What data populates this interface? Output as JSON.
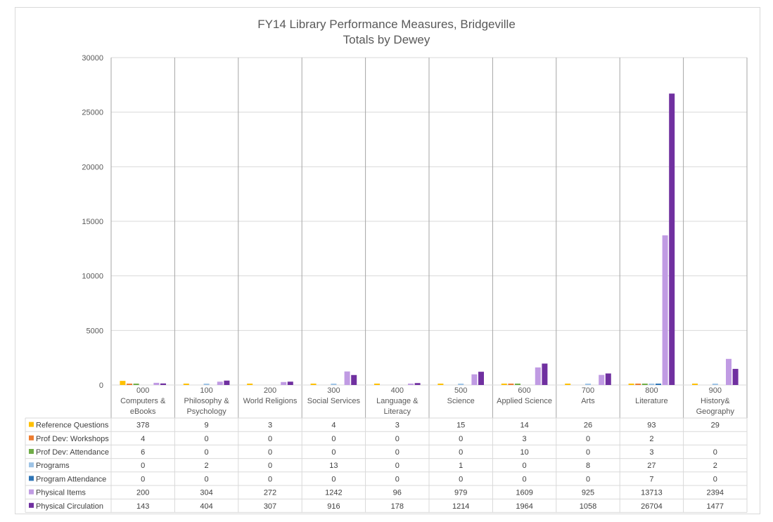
{
  "chart_data": {
    "type": "bar",
    "title": "FY14 Library Performance Measures, Bridgeville",
    "subtitle": "Totals by Dewey",
    "ylim": [
      0,
      30000
    ],
    "yticks": [
      "0",
      "5000",
      "10000",
      "15000",
      "20000",
      "25000",
      "30000"
    ],
    "categories": [
      [
        "000",
        "Computers &",
        "eBooks"
      ],
      [
        "100",
        "Philosophy &",
        "Psychology"
      ],
      [
        "200",
        "World Religions"
      ],
      [
        "300",
        "Social Services"
      ],
      [
        "400",
        "Language &",
        "Literacy"
      ],
      [
        "500",
        "Science"
      ],
      [
        "600",
        "Applied Science"
      ],
      [
        "700",
        "Arts"
      ],
      [
        "800",
        "Literature"
      ],
      [
        "900",
        "History&",
        "Geography"
      ]
    ],
    "series": [
      {
        "name": "Reference Questions",
        "color": "#ffc000",
        "values": [
          378,
          9,
          3,
          4,
          3,
          15,
          14,
          26,
          93,
          29
        ]
      },
      {
        "name": "Prof Dev: Workshops",
        "color": "#ed7d31",
        "values": [
          4,
          0,
          0,
          0,
          0,
          0,
          3,
          0,
          2,
          null
        ]
      },
      {
        "name": "Prof Dev: Attendance",
        "color": "#70ad47",
        "values": [
          6,
          0,
          0,
          0,
          0,
          0,
          10,
          0,
          3,
          0
        ]
      },
      {
        "name": "Programs",
        "color": "#9dc3e6",
        "values": [
          0,
          2,
          0,
          13,
          0,
          1,
          0,
          8,
          27,
          2
        ]
      },
      {
        "name": "Program Attendance",
        "color": "#2e75b6",
        "values": [
          0,
          0,
          0,
          0,
          0,
          0,
          0,
          0,
          7,
          0
        ]
      },
      {
        "name": "Physical Items",
        "color": "#c09be3",
        "values": [
          200,
          304,
          272,
          1242,
          96,
          979,
          1609,
          925,
          13713,
          2394
        ]
      },
      {
        "name": "Physical Circulation",
        "color": "#7030a0",
        "values": [
          143,
          404,
          307,
          916,
          178,
          1214,
          1964,
          1058,
          26704,
          1477
        ]
      }
    ],
    "grid": true,
    "legend": "data-table"
  }
}
